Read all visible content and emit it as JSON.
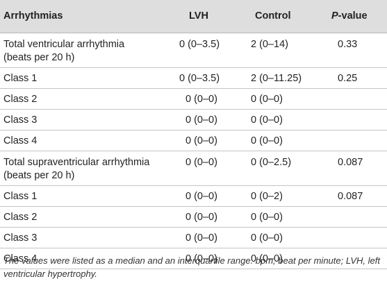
{
  "table": {
    "headers": {
      "arrhythmias": "Arrhythmias",
      "lvh": "LVH",
      "control": "Control",
      "p_italic": "P",
      "p_rest": "-value"
    },
    "rows": [
      {
        "label_line1": "Total ventricular arrhythmia",
        "label_line2": "(beats per 20 h)",
        "lvh": "0 (0–3.5)",
        "control": "2 (0–14)",
        "p": "0.33"
      },
      {
        "label_line1": "Class 1",
        "label_line2": "",
        "lvh": "0 (0–3.5)",
        "control": "2 (0–11.25)",
        "p": "0.25"
      },
      {
        "label_line1": "Class 2",
        "label_line2": "",
        "lvh": "0 (0–0)",
        "control": "0 (0–0)",
        "p": ""
      },
      {
        "label_line1": "Class 3",
        "label_line2": "",
        "lvh": "0 (0–0)",
        "control": "0 (0–0)",
        "p": ""
      },
      {
        "label_line1": "Class 4",
        "label_line2": "",
        "lvh": "0 (0–0)",
        "control": "0 (0–0)",
        "p": ""
      },
      {
        "label_line1": "Total supraventricular arrhythmia",
        "label_line2": "(beats per 20 h)",
        "lvh": "0 (0–0)",
        "control": "0 (0–2.5)",
        "p": "0.087"
      },
      {
        "label_line1": "Class 1",
        "label_line2": "",
        "lvh": "0 (0–0)",
        "control": "0 (0–2)",
        "p": "0.087"
      },
      {
        "label_line1": "Class 2",
        "label_line2": "",
        "lvh": "0 (0–0)",
        "control": "0 (0–0)",
        "p": ""
      },
      {
        "label_line1": "Class 3",
        "label_line2": "",
        "lvh": "0 (0–0)",
        "control": "0 (0–0)",
        "p": ""
      },
      {
        "label_line1": "Class 4",
        "label_line2": "",
        "lvh": "0 (0–0)",
        "control": "0 (0–0)",
        "p": ""
      }
    ]
  },
  "footnote": "The values were listed as a median and an interquartile range. bpm, beat per minute; LVH, left ventricular hypertrophy."
}
